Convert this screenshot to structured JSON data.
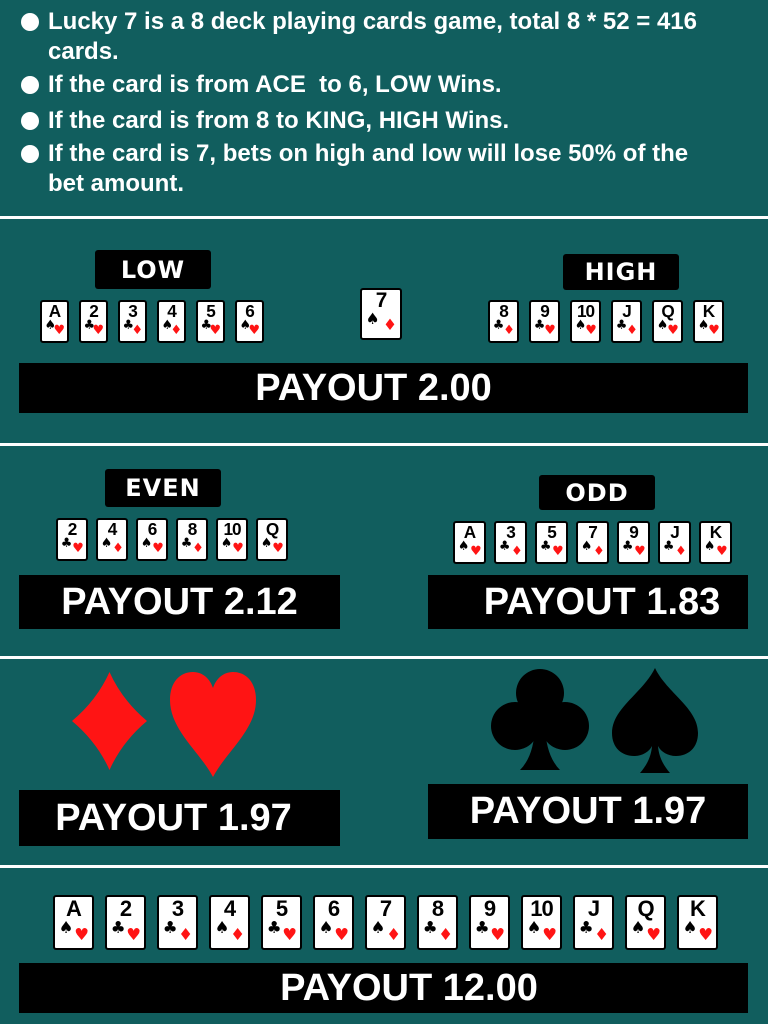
{
  "colors": {
    "background": "#115e5e",
    "red": "#ff1414",
    "black": "#000000",
    "text": "#ffffff"
  },
  "rules": {
    "items": [
      "Lucky 7 is a 8 deck playing cards game, total 8 * 52 = 416 cards.",
      "If the card is from ACE  to 6, LOW Wins.",
      "If the card is from 8 to KING, HIGH Wins.",
      "If the card is 7, bets on high and low will lose 50% of the bet amount."
    ]
  },
  "low_high": {
    "low_label": "LOW",
    "high_label": "HIGH",
    "low_cards": [
      "A",
      "2",
      "3",
      "4",
      "5",
      "6"
    ],
    "seven_card": "7",
    "high_cards": [
      "8",
      "9",
      "10",
      "J",
      "Q",
      "K"
    ],
    "payout": "PAYOUT 2.00"
  },
  "even_odd": {
    "even_label": "EVEN",
    "odd_label": "ODD",
    "even_cards": [
      "2",
      "4",
      "6",
      "8",
      "10",
      "Q"
    ],
    "odd_cards": [
      "A",
      "3",
      "5",
      "7",
      "9",
      "J",
      "K"
    ],
    "even_payout": "PAYOUT 2.12",
    "odd_payout": "PAYOUT 1.83"
  },
  "suits": {
    "red_icons": [
      "diamond-icon",
      "heart-icon"
    ],
    "black_icons": [
      "club-icon",
      "spade-icon"
    ],
    "red_payout": "PAYOUT 1.97",
    "black_payout": "PAYOUT 1.97"
  },
  "any_card": {
    "cards": [
      "A",
      "2",
      "3",
      "4",
      "5",
      "6",
      "7",
      "8",
      "9",
      "10",
      "J",
      "Q",
      "K"
    ],
    "payout": "PAYOUT 12.00"
  },
  "card_pips": {
    "A": [
      "spade",
      "heart"
    ],
    "2": [
      "club",
      "heart"
    ],
    "3": [
      "club",
      "diamond"
    ],
    "4": [
      "spade",
      "diamond"
    ],
    "5": [
      "club",
      "heart"
    ],
    "6": [
      "spade",
      "heart"
    ],
    "7": [
      "spade",
      "diamond"
    ],
    "8": [
      "club",
      "diamond"
    ],
    "9": [
      "club",
      "heart"
    ],
    "10": [
      "spade",
      "heart"
    ],
    "J": [
      "club",
      "diamond"
    ],
    "Q": [
      "spade",
      "heart"
    ],
    "K": [
      "spade",
      "heart"
    ]
  }
}
